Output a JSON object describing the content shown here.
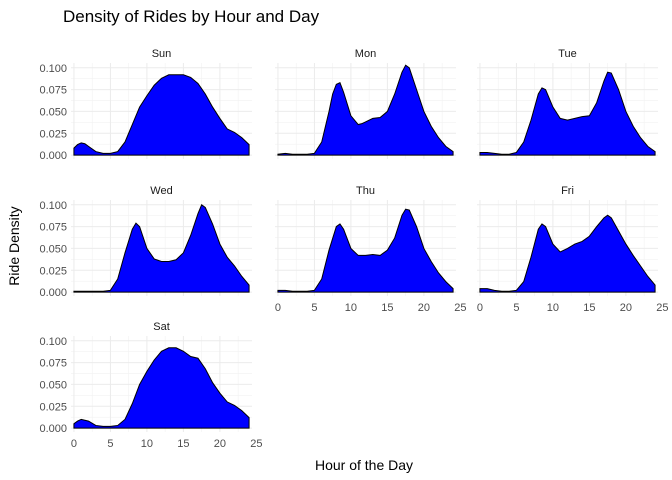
{
  "chart_data": {
    "type": "area",
    "title": "Density of Rides by Hour and Day",
    "xlabel": "Hour of the Day",
    "ylabel": "Ride Density",
    "xlim": [
      0,
      25
    ],
    "ylim": [
      0,
      0.105
    ],
    "x_ticks": [
      0,
      5,
      10,
      15,
      20,
      25
    ],
    "y_ticks": [
      0,
      0.025,
      0.05,
      0.075,
      0.1
    ],
    "x_tick_labels": [
      "0",
      "5",
      "10",
      "15",
      "20",
      "25"
    ],
    "y_tick_labels": [
      "0.000",
      "0.025",
      "0.050",
      "0.075",
      "0.100"
    ],
    "grid": true,
    "fill_color": "#0000ff",
    "line_color": "#000000",
    "panels": [
      {
        "day": "Sun",
        "x": [
          0,
          0.5,
          1,
          1.5,
          2,
          3,
          4,
          5,
          6,
          7,
          8,
          9,
          10,
          11,
          12,
          13,
          14,
          15,
          16,
          17,
          18,
          19,
          20,
          21,
          22,
          23,
          24
        ],
        "y": [
          0.008,
          0.012,
          0.014,
          0.013,
          0.01,
          0.004,
          0.002,
          0.002,
          0.004,
          0.015,
          0.035,
          0.055,
          0.068,
          0.08,
          0.088,
          0.092,
          0.092,
          0.092,
          0.089,
          0.082,
          0.07,
          0.055,
          0.042,
          0.03,
          0.026,
          0.02,
          0.012
        ]
      },
      {
        "day": "Mon",
        "x": [
          0,
          1,
          2,
          3,
          4,
          5,
          6,
          7,
          7.5,
          8,
          8.5,
          9,
          10,
          11,
          11.5,
          12,
          13,
          14,
          15,
          16,
          17,
          17.5,
          18,
          19,
          20,
          21,
          22,
          23,
          24
        ],
        "y": [
          0.001,
          0.002,
          0.001,
          0.001,
          0.001,
          0.002,
          0.015,
          0.05,
          0.07,
          0.081,
          0.083,
          0.072,
          0.045,
          0.035,
          0.036,
          0.038,
          0.042,
          0.043,
          0.05,
          0.07,
          0.095,
          0.103,
          0.1,
          0.075,
          0.05,
          0.033,
          0.02,
          0.01,
          0.004
        ]
      },
      {
        "day": "Tue",
        "x": [
          0,
          1,
          2,
          3,
          4,
          5,
          6,
          7,
          8,
          8.5,
          9,
          10,
          11,
          12,
          13,
          14,
          15,
          16,
          17,
          17.5,
          18,
          19,
          20,
          21,
          22,
          23,
          24
        ],
        "y": [
          0.003,
          0.003,
          0.002,
          0.001,
          0.001,
          0.003,
          0.015,
          0.04,
          0.07,
          0.077,
          0.075,
          0.055,
          0.042,
          0.04,
          0.042,
          0.044,
          0.045,
          0.06,
          0.085,
          0.095,
          0.094,
          0.075,
          0.05,
          0.033,
          0.02,
          0.01,
          0.004
        ]
      },
      {
        "day": "Wed",
        "x": [
          0,
          1,
          2,
          3,
          4,
          5,
          6,
          7,
          8,
          8.5,
          9,
          10,
          11,
          12,
          13,
          14,
          15,
          16,
          17,
          17.5,
          18,
          19,
          20,
          21,
          22,
          23,
          24
        ],
        "y": [
          0.001,
          0.001,
          0.001,
          0.001,
          0.001,
          0.002,
          0.015,
          0.045,
          0.072,
          0.079,
          0.075,
          0.05,
          0.038,
          0.035,
          0.035,
          0.037,
          0.045,
          0.065,
          0.09,
          0.1,
          0.097,
          0.078,
          0.055,
          0.04,
          0.03,
          0.018,
          0.008
        ]
      },
      {
        "day": "Thu",
        "x": [
          0,
          1,
          2,
          3,
          4,
          5,
          6,
          7,
          8,
          8.5,
          9,
          10,
          11,
          12,
          13,
          14,
          15,
          16,
          17,
          17.5,
          18,
          19,
          20,
          21,
          22,
          23,
          24
        ],
        "y": [
          0.002,
          0.002,
          0.001,
          0.001,
          0.001,
          0.002,
          0.015,
          0.048,
          0.075,
          0.078,
          0.072,
          0.05,
          0.042,
          0.042,
          0.043,
          0.042,
          0.048,
          0.062,
          0.088,
          0.095,
          0.094,
          0.075,
          0.05,
          0.035,
          0.022,
          0.012,
          0.004
        ]
      },
      {
        "day": "Fri",
        "x": [
          0,
          1,
          2,
          3,
          4,
          5,
          6,
          7,
          8,
          8.5,
          9,
          10,
          11,
          12,
          13,
          14,
          15,
          16,
          17,
          17.5,
          18,
          19,
          20,
          21,
          22,
          23,
          24
        ],
        "y": [
          0.004,
          0.004,
          0.002,
          0.001,
          0.001,
          0.002,
          0.012,
          0.04,
          0.072,
          0.078,
          0.075,
          0.055,
          0.046,
          0.05,
          0.055,
          0.058,
          0.064,
          0.075,
          0.085,
          0.088,
          0.085,
          0.07,
          0.055,
          0.042,
          0.03,
          0.018,
          0.008
        ]
      },
      {
        "day": "Sat",
        "x": [
          0,
          0.5,
          1,
          1.5,
          2,
          3,
          4,
          5,
          6,
          7,
          8,
          9,
          10,
          11,
          12,
          13,
          14,
          15,
          16,
          17,
          18,
          19,
          20,
          21,
          22,
          23,
          24
        ],
        "y": [
          0.005,
          0.008,
          0.01,
          0.009,
          0.008,
          0.003,
          0.002,
          0.002,
          0.003,
          0.01,
          0.028,
          0.05,
          0.065,
          0.078,
          0.088,
          0.092,
          0.092,
          0.088,
          0.082,
          0.08,
          0.068,
          0.052,
          0.04,
          0.03,
          0.026,
          0.02,
          0.012
        ]
      }
    ]
  }
}
